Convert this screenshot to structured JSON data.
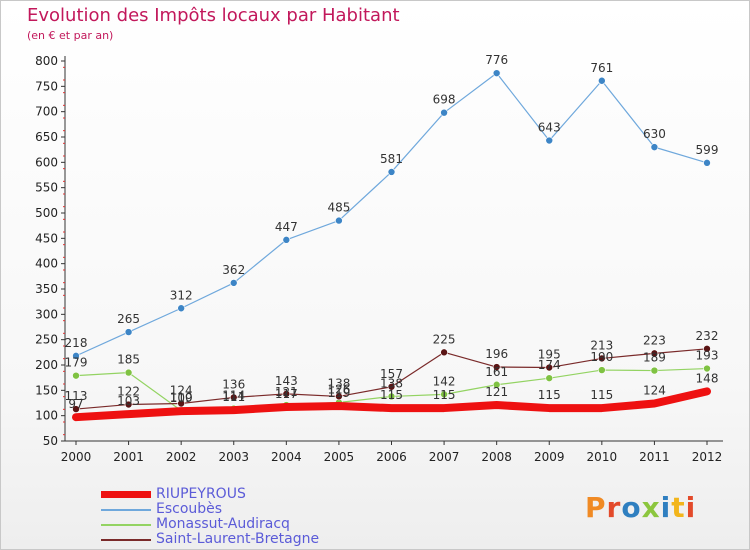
{
  "title": "Evolution des Impôts locaux par Habitant",
  "subtitle": "(en € et par an)",
  "logo": {
    "text": "Proxiti",
    "colors": [
      "#f08a24",
      "#e34a2a",
      "#2f7fc0",
      "#8cc63e",
      "#2f7fc0",
      "#f2b51b",
      "#e34a2a"
    ]
  },
  "chart_data": {
    "type": "line",
    "title": "Evolution des Impôts locaux par Habitant",
    "subtitle": "(en € et par an)",
    "xlabel": "",
    "ylabel": "",
    "x": [
      "2000",
      "2001",
      "2002",
      "2003",
      "2004",
      "2005",
      "2006",
      "2007",
      "2008",
      "2009",
      "2010",
      "2011",
      "2012"
    ],
    "ylim": [
      50,
      800
    ],
    "yticks": [
      50,
      100,
      150,
      200,
      250,
      300,
      350,
      400,
      450,
      500,
      550,
      600,
      650,
      700,
      750,
      800
    ],
    "grid": false,
    "legend_position": "bottom-left",
    "series": [
      {
        "name": "RIUPEYROUS",
        "color": "#ee1111",
        "width": 8,
        "marker": false,
        "values": [
          97,
          103,
          109,
          111,
          117,
          119,
          115,
          115,
          121,
          115,
          115,
          124,
          148
        ],
        "labels": [
          "97",
          "103",
          "109",
          "111",
          "117",
          "119",
          "115",
          "115",
          "121",
          "115",
          "115",
          "124",
          "148"
        ]
      },
      {
        "name": "Escoubès",
        "color": "#6fa8dc",
        "marker_color": "#3d85c6",
        "width": 1.2,
        "marker": true,
        "values": [
          218,
          265,
          312,
          362,
          447,
          485,
          581,
          698,
          776,
          643,
          761,
          630,
          599
        ],
        "labels": [
          "218",
          "265",
          "312",
          "362",
          "447",
          "485",
          "581",
          "698",
          "776",
          "643",
          "761",
          "630",
          "599"
        ]
      },
      {
        "name": "Monassut-Audiracq",
        "color": "#93d362",
        "marker_color": "#7fc242",
        "width": 1.2,
        "marker": true,
        "values": [
          179,
          185,
          110,
          114,
          121,
          126,
          138,
          142,
          161,
          174,
          190,
          189,
          193
        ],
        "labels": [
          "179",
          "185",
          "110",
          "114",
          "121",
          "126",
          "138",
          "142",
          "161",
          "174",
          "190",
          "189",
          "193"
        ]
      },
      {
        "name": "Saint-Laurent-Bretagne",
        "color": "#7a2a2a",
        "marker_color": "#5a1414",
        "width": 1.2,
        "marker": true,
        "values": [
          113,
          122,
          124,
          136,
          143,
          138,
          157,
          225,
          196,
          195,
          213,
          223,
          232
        ],
        "labels": [
          "113",
          "122",
          "124",
          "136",
          "143",
          "138",
          "157",
          "225",
          "196",
          "195",
          "213",
          "223",
          "232"
        ]
      }
    ]
  }
}
